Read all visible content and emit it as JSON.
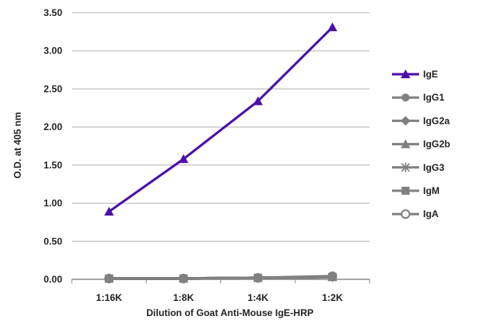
{
  "chart_data": {
    "type": "line",
    "title": "",
    "xlabel": "Dilution of Goat Anti-Mouse IgE-HRP",
    "ylabel": "O.D. at 405 nm",
    "categories": [
      "1:16K",
      "1:8K",
      "1:4K",
      "1:2K"
    ],
    "ylim": [
      0,
      3.5
    ],
    "yticks": [
      "0.00",
      "0.50",
      "1.00",
      "1.50",
      "2.00",
      "2.50",
      "3.00",
      "3.50"
    ],
    "grid": "horizontal",
    "legend_position": "right",
    "series": [
      {
        "name": "IgE",
        "marker": "triangle",
        "color": "#4b0fa8",
        "values": [
          0.89,
          1.58,
          2.34,
          3.31
        ]
      },
      {
        "name": "IgG1",
        "marker": "circle",
        "color": "#808080",
        "values": [
          0.01,
          0.01,
          0.02,
          0.03
        ]
      },
      {
        "name": "IgG2a",
        "marker": "diamond",
        "color": "#808080",
        "values": [
          0.01,
          0.01,
          0.02,
          0.03
        ]
      },
      {
        "name": "IgG2b",
        "marker": "triangle",
        "color": "#808080",
        "values": [
          0.01,
          0.01,
          0.02,
          0.03
        ]
      },
      {
        "name": "IgG3",
        "marker": "asterisk",
        "color": "#808080",
        "values": [
          0.01,
          0.01,
          0.02,
          0.03
        ]
      },
      {
        "name": "IgM",
        "marker": "square",
        "color": "#808080",
        "values": [
          0.01,
          0.01,
          0.02,
          0.03
        ]
      },
      {
        "name": "IgA",
        "marker": "open-circle",
        "color": "#808080",
        "values": [
          0.01,
          0.01,
          0.02,
          0.04
        ]
      }
    ]
  }
}
